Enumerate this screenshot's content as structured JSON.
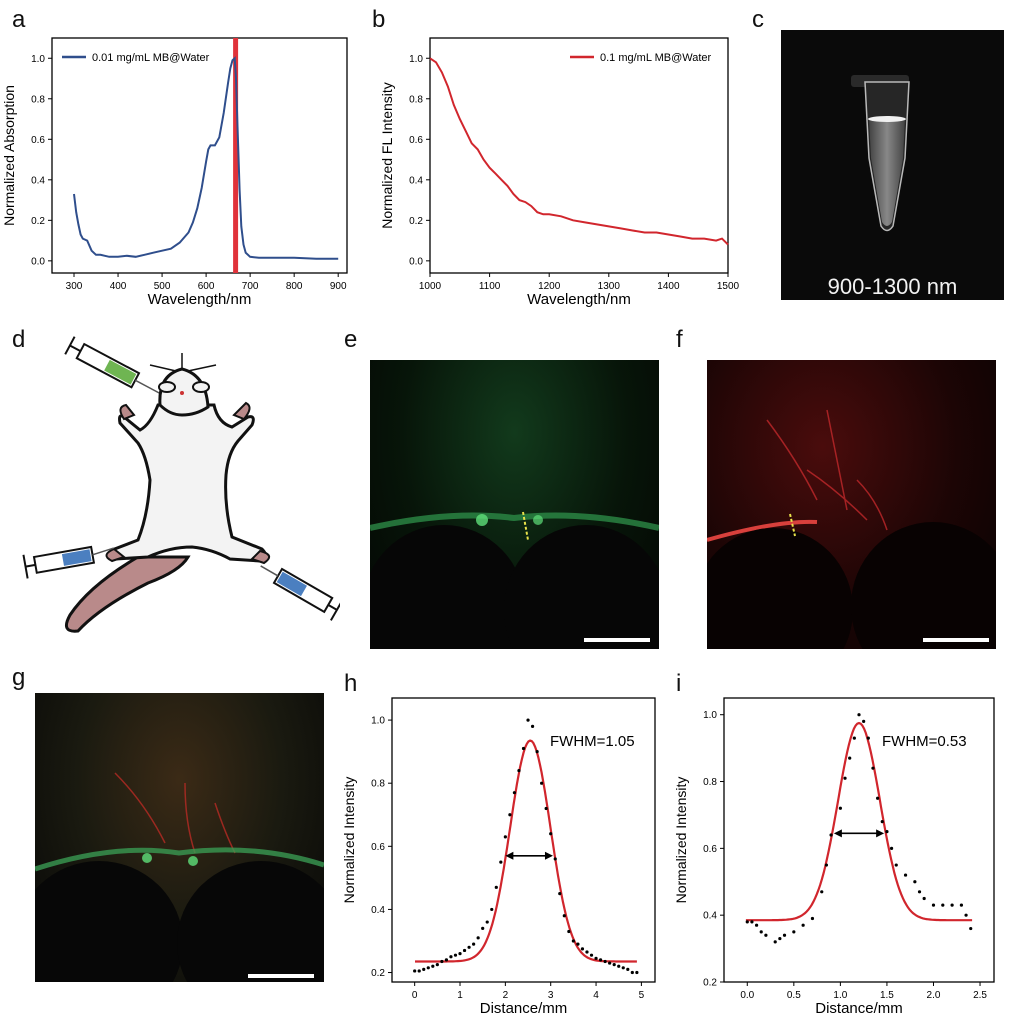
{
  "panels": {
    "a": "a",
    "b": "b",
    "c": "c",
    "d": "d",
    "e": "e",
    "f": "f",
    "g": "g",
    "h": "h",
    "i": "i"
  },
  "photo_c_label": "900-1300 nm",
  "chart_data": [
    {
      "panel": "a",
      "type": "line",
      "xlabel": "Wavelength/nm",
      "ylabel": "Normalized Absorption",
      "xlim": [
        250,
        920
      ],
      "ylim": [
        -0.06,
        1.1
      ],
      "xticks": [
        300,
        400,
        500,
        600,
        700,
        800,
        900
      ],
      "yticks": [
        0.0,
        0.2,
        0.4,
        0.6,
        0.8,
        1.0
      ],
      "legend": "top-left",
      "series": [
        {
          "name": "0.01 mg/mL MB@Water",
          "color": "#2f4e8c",
          "x": [
            300,
            305,
            310,
            315,
            320,
            330,
            340,
            350,
            360,
            380,
            400,
            420,
            440,
            460,
            480,
            500,
            520,
            540,
            560,
            570,
            580,
            590,
            600,
            605,
            610,
            615,
            620,
            630,
            640,
            650,
            655,
            660,
            665,
            668,
            672,
            676,
            680,
            685,
            690,
            700,
            720,
            760,
            800,
            850,
            900
          ],
          "y": [
            0.33,
            0.24,
            0.18,
            0.13,
            0.11,
            0.1,
            0.05,
            0.03,
            0.03,
            0.02,
            0.02,
            0.025,
            0.02,
            0.03,
            0.04,
            0.05,
            0.06,
            0.09,
            0.14,
            0.19,
            0.26,
            0.36,
            0.49,
            0.55,
            0.57,
            0.57,
            0.57,
            0.61,
            0.73,
            0.88,
            0.95,
            0.99,
            1.0,
            0.9,
            0.62,
            0.35,
            0.17,
            0.08,
            0.04,
            0.02,
            0.015,
            0.015,
            0.015,
            0.01,
            0.01
          ]
        }
      ],
      "marker_band": {
        "x": 667,
        "color": "#e0323a"
      }
    },
    {
      "panel": "b",
      "type": "line",
      "xlabel": "Wavelength/nm",
      "ylabel": "Normalized FL Intensity",
      "xlim": [
        1000,
        1500
      ],
      "ylim": [
        -0.06,
        1.1
      ],
      "xticks": [
        1000,
        1100,
        1200,
        1300,
        1400,
        1500
      ],
      "yticks": [
        0.0,
        0.2,
        0.4,
        0.6,
        0.8,
        1.0
      ],
      "legend": "top-right",
      "series": [
        {
          "name": "0.1 mg/mL MB@Water",
          "color": "#d1262d",
          "x": [
            1000,
            1010,
            1020,
            1030,
            1040,
            1050,
            1060,
            1070,
            1080,
            1090,
            1100,
            1110,
            1120,
            1130,
            1140,
            1150,
            1160,
            1170,
            1180,
            1190,
            1200,
            1220,
            1240,
            1260,
            1280,
            1300,
            1320,
            1340,
            1360,
            1380,
            1400,
            1420,
            1440,
            1460,
            1480,
            1490,
            1500
          ],
          "y": [
            1.0,
            0.98,
            0.93,
            0.86,
            0.77,
            0.7,
            0.64,
            0.58,
            0.55,
            0.5,
            0.46,
            0.43,
            0.4,
            0.37,
            0.33,
            0.3,
            0.29,
            0.27,
            0.24,
            0.23,
            0.23,
            0.22,
            0.2,
            0.19,
            0.18,
            0.17,
            0.16,
            0.15,
            0.14,
            0.14,
            0.13,
            0.12,
            0.11,
            0.11,
            0.1,
            0.11,
            0.08
          ]
        }
      ]
    },
    {
      "panel": "h",
      "type": "scatter",
      "xlabel": "Distance/mm",
      "ylabel": "Normalized Intensity",
      "xlim": [
        -0.5,
        5.3
      ],
      "ylim": [
        0.17,
        1.07
      ],
      "xticks": [
        0,
        1,
        2,
        3,
        4,
        5
      ],
      "yticks": [
        0.2,
        0.4,
        0.6,
        0.8,
        1.0
      ],
      "annotation": "FWHM=1.05",
      "fit": {
        "baseline": 0.235,
        "amplitude": 0.7,
        "center": 2.55,
        "sigma": 0.445,
        "color": "#d1262d"
      },
      "arrow": {
        "x1": 2.0,
        "x2": 3.05,
        "y": 0.57
      },
      "series": [
        {
          "x": [
            0.0,
            0.1,
            0.2,
            0.3,
            0.4,
            0.5,
            0.6,
            0.7,
            0.8,
            0.9,
            1.0,
            1.1,
            1.2,
            1.3,
            1.4,
            1.5,
            1.6,
            1.7,
            1.8,
            1.9,
            2.0,
            2.1,
            2.2,
            2.3,
            2.4,
            2.5,
            2.6,
            2.7,
            2.8,
            2.9,
            3.0,
            3.1,
            3.2,
            3.3,
            3.4,
            3.5,
            3.6,
            3.7,
            3.8,
            3.9,
            4.0,
            4.1,
            4.2,
            4.3,
            4.4,
            4.5,
            4.6,
            4.7,
            4.8,
            4.9
          ],
          "y": [
            0.205,
            0.205,
            0.21,
            0.215,
            0.22,
            0.225,
            0.235,
            0.24,
            0.25,
            0.255,
            0.26,
            0.27,
            0.28,
            0.29,
            0.31,
            0.34,
            0.36,
            0.4,
            0.47,
            0.55,
            0.63,
            0.7,
            0.77,
            0.84,
            0.91,
            1.0,
            0.98,
            0.9,
            0.8,
            0.72,
            0.64,
            0.56,
            0.45,
            0.38,
            0.33,
            0.3,
            0.29,
            0.275,
            0.265,
            0.255,
            0.245,
            0.24,
            0.235,
            0.23,
            0.225,
            0.22,
            0.215,
            0.21,
            0.2,
            0.2
          ]
        }
      ]
    },
    {
      "panel": "i",
      "type": "scatter",
      "xlabel": "Distance/mm",
      "ylabel": "Normalized Intensity",
      "xlim": [
        -0.25,
        2.65
      ],
      "ylim": [
        0.2,
        1.05
      ],
      "xticks": [
        0.0,
        0.5,
        1.0,
        1.5,
        2.0,
        2.5
      ],
      "yticks": [
        0.2,
        0.4,
        0.6,
        0.8,
        1.0
      ],
      "annotation": "FWHM=0.53",
      "fit": {
        "baseline": 0.385,
        "amplitude": 0.59,
        "center": 1.2,
        "sigma": 0.225,
        "color": "#d1262d"
      },
      "arrow": {
        "x1": 0.93,
        "x2": 1.47,
        "y": 0.645
      },
      "series": [
        {
          "x": [
            0.0,
            0.05,
            0.1,
            0.15,
            0.2,
            0.3,
            0.35,
            0.4,
            0.5,
            0.6,
            0.7,
            0.8,
            0.85,
            0.9,
            1.0,
            1.05,
            1.1,
            1.15,
            1.2,
            1.25,
            1.3,
            1.35,
            1.4,
            1.45,
            1.5,
            1.55,
            1.6,
            1.7,
            1.8,
            1.85,
            1.9,
            2.0,
            2.1,
            2.2,
            2.3,
            2.35,
            2.4
          ],
          "y": [
            0.38,
            0.38,
            0.37,
            0.35,
            0.34,
            0.32,
            0.33,
            0.34,
            0.35,
            0.37,
            0.39,
            0.47,
            0.55,
            0.64,
            0.72,
            0.81,
            0.87,
            0.93,
            1.0,
            0.98,
            0.93,
            0.84,
            0.75,
            0.68,
            0.65,
            0.6,
            0.55,
            0.52,
            0.5,
            0.47,
            0.45,
            0.43,
            0.43,
            0.43,
            0.43,
            0.4,
            0.36
          ]
        }
      ]
    }
  ]
}
